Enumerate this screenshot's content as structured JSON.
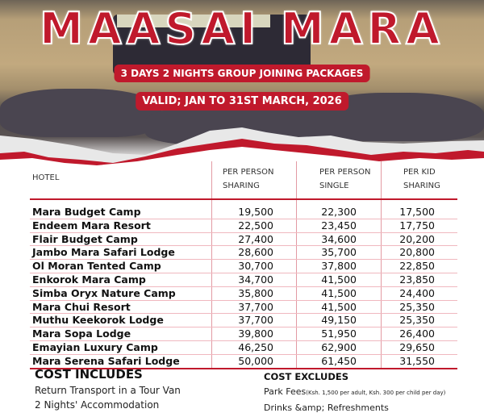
{
  "header": {
    "title": "MAASAI MARA",
    "subtitle": "3 DAYS 2 NIGHTS GROUP JOINING PACKAGES",
    "validity": "VALID; JAN TO 31ST MARCH, 2026",
    "accent_color": "#c0192c"
  },
  "table": {
    "columns": [
      {
        "line1": "HOTEL",
        "line2": ""
      },
      {
        "line1": "PER PERSON",
        "line2": "SHARING"
      },
      {
        "line1": "PER PERSON",
        "line2": "SINGLE"
      },
      {
        "line1": "PER KID",
        "line2": "SHARING"
      }
    ],
    "rows": [
      [
        "Mara Budget Camp",
        "19,500",
        "22,300",
        "17,500"
      ],
      [
        "Endeem Mara Resort",
        "22,500",
        "23,450",
        "17,750"
      ],
      [
        "Flair Budget Camp",
        "27,400",
        "34,600",
        "20,200"
      ],
      [
        "Jambo Mara Safari Lodge",
        "28,600",
        "35,700",
        "20,800"
      ],
      [
        "Ol Moran Tented Camp",
        "30,700",
        "37,800",
        "22,850"
      ],
      [
        "Enkorok Mara Camp",
        "34,700",
        "41,500",
        "23,850"
      ],
      [
        "Simba Oryx Nature Camp",
        "35,800",
        "41,500",
        "24,400"
      ],
      [
        "Mara Chui Resort",
        "37,700",
        "41,500",
        "25,350"
      ],
      [
        "Muthu Keekorok Lodge",
        "37,700",
        "49,150",
        "25,350"
      ],
      [
        "Mara Sopa Lodge",
        "39,800",
        "51,950",
        "26,400"
      ],
      [
        "Emayian Luxury Camp",
        "46,250",
        "62,900",
        "29,650"
      ],
      [
        "Mara Serena Safari Lodge",
        "50,000",
        "61,450",
        "31,550"
      ]
    ]
  },
  "includes": {
    "title": "COST INCLUDES",
    "items": [
      "Return Transport in a Tour Van",
      "2 Nights' Accommodation"
    ]
  },
  "excludes": {
    "title": "COST EXCLUDES",
    "item1": "Park Fees",
    "item1_note": "(Ksh. 1,500 per adult, Ksh. 300 per child per day)",
    "item2": "Drinks &amp; Refreshments"
  }
}
